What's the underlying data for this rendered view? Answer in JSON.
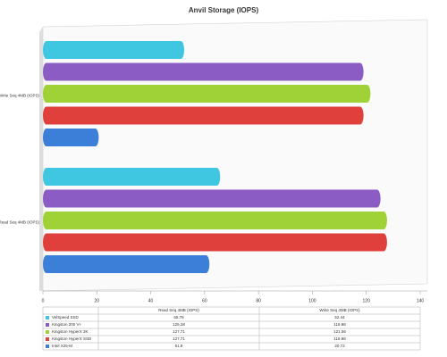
{
  "chart_data": {
    "type": "bar",
    "orientation": "horizontal",
    "title": "Anvil Storage (IOPS)",
    "categories": [
      "Read Seq 4MB (IOPS)",
      "Write Seq 4MB (IOPS)"
    ],
    "series": [
      {
        "name": "VelSpeed SSD",
        "color": "#3fc6e0",
        "values": [
          65.78,
          52.44
        ]
      },
      {
        "name": "Kingston 200 V+",
        "color": "#8a5cc4",
        "values": [
          125.28,
          118.98
        ]
      },
      {
        "name": "Kingston HyperX 3K",
        "color": "#9ed236",
        "values": [
          127.71,
          121.56
        ]
      },
      {
        "name": "Kingston HyperX SSD",
        "color": "#e0403c",
        "values": [
          127.71,
          118.98
        ]
      },
      {
        "name": "Intel X25-M",
        "color": "#3c7fd8",
        "values": [
          61.8,
          20.72
        ]
      }
    ],
    "xlim": [
      0,
      140
    ],
    "xticks": [
      0,
      20,
      40,
      60,
      80,
      100,
      120,
      140
    ],
    "grid": false,
    "data_table": true
  }
}
